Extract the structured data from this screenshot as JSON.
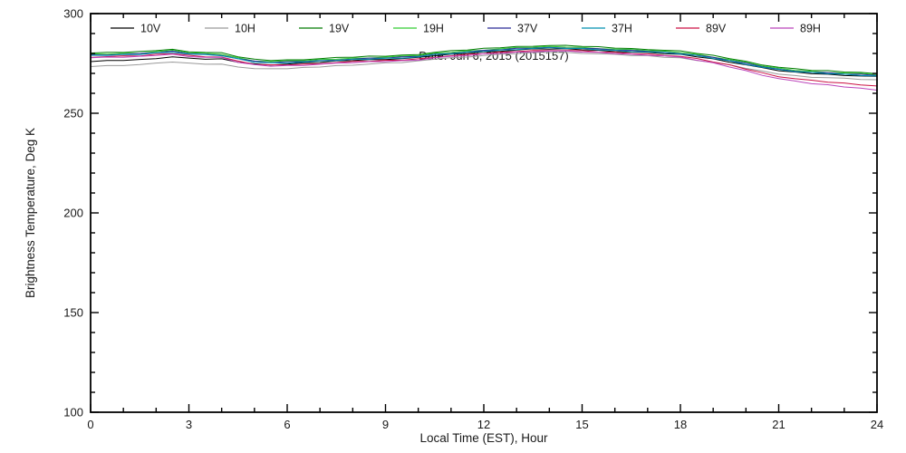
{
  "figure": {
    "background": "#ffffff",
    "frame_color": "#000000"
  },
  "chart_data": {
    "type": "line",
    "title": "",
    "xlabel": "Local Time (EST), Hour",
    "ylabel": "Brightness Temperature, Deg K",
    "annotation": "Date: Jun 6, 2015 (2015157)",
    "xlim": [
      0,
      24
    ],
    "ylim": [
      100,
      300
    ],
    "x_ticks": [
      0,
      3,
      6,
      9,
      12,
      15,
      18,
      21,
      24
    ],
    "y_ticks": [
      100,
      150,
      200,
      250,
      300
    ],
    "x_minor_step": 1,
    "y_minor_step": 10,
    "grid": false,
    "legend_position": "top-inside-horizontal",
    "x": [
      0,
      0.5,
      1,
      1.5,
      2,
      2.5,
      3,
      3.5,
      4,
      4.5,
      5,
      5.5,
      6,
      6.5,
      7,
      7.5,
      8,
      8.5,
      9,
      9.5,
      10,
      10.5,
      11,
      11.5,
      12,
      12.5,
      13,
      13.5,
      14,
      14.5,
      15,
      15.5,
      16,
      16.5,
      17,
      17.5,
      18,
      18.5,
      19,
      19.5,
      20,
      20.5,
      21,
      21.5,
      22,
      22.5,
      23,
      23.5,
      24
    ],
    "series": [
      {
        "name": "10V",
        "color": "#000000",
        "values": [
          275.9,
          276.5,
          276.5,
          277.0,
          277.4,
          278.3,
          277.7,
          277.1,
          277.3,
          275.6,
          274.8,
          274.2,
          274.7,
          275.3,
          275.5,
          276.3,
          276.4,
          276.9,
          276.9,
          277.4,
          278.1,
          278.8,
          279.7,
          280.0,
          280.8,
          281.0,
          281.7,
          282.3,
          282.2,
          282.4,
          281.8,
          281.6,
          280.9,
          280.7,
          280.6,
          279.8,
          279.6,
          278.3,
          277.3,
          275.6,
          274.3,
          272.9,
          271.3,
          270.7,
          269.8,
          269.6,
          268.9,
          268.7,
          268.5
        ]
      },
      {
        "name": "10H",
        "color": "#9a9a9a",
        "values": [
          273.4,
          273.9,
          273.9,
          274.4,
          275.2,
          275.7,
          275.2,
          274.6,
          274.7,
          273.2,
          272.4,
          272.3,
          272.3,
          273.0,
          273.2,
          273.9,
          274.1,
          274.7,
          275.3,
          275.4,
          276.3,
          277.1,
          277.9,
          278.2,
          279.0,
          279.7,
          279.9,
          280.6,
          280.5,
          280.6,
          280.0,
          279.8,
          279.6,
          278.9,
          278.9,
          278.1,
          277.8,
          276.5,
          275.5,
          274.3,
          272.5,
          271.2,
          269.6,
          268.9,
          268.0,
          267.8,
          267.6,
          266.9,
          266.8
        ]
      },
      {
        "name": "19V",
        "color": "#007a00",
        "values": [
          280.2,
          280.6,
          280.5,
          281.0,
          281.4,
          282.1,
          280.8,
          280.5,
          280.4,
          278.3,
          277.2,
          276.4,
          276.8,
          276.8,
          277.4,
          278.0,
          278.1,
          278.7,
          278.6,
          279.2,
          279.4,
          280.6,
          281.4,
          281.7,
          282.6,
          282.8,
          283.5,
          283.6,
          284.0,
          284.1,
          283.5,
          283.4,
          282.7,
          282.5,
          281.9,
          281.6,
          281.3,
          280.0,
          279.1,
          277.4,
          276.1,
          274.2,
          273.1,
          272.4,
          271.5,
          271.4,
          270.7,
          270.5,
          269.8
        ]
      },
      {
        "name": "19H",
        "color": "#33cc33",
        "values": [
          279.8,
          279.7,
          280.1,
          280.0,
          280.9,
          281.6,
          280.3,
          280.1,
          279.5,
          277.9,
          276.2,
          275.9,
          276.3,
          276.3,
          277.0,
          277.1,
          277.7,
          277.7,
          278.2,
          278.7,
          278.9,
          280.2,
          280.5,
          281.3,
          281.6,
          282.3,
          283.0,
          283.1,
          283.6,
          283.2,
          283.1,
          282.4,
          282.2,
          282.0,
          281.4,
          281.2,
          280.4,
          279.6,
          278.1,
          276.9,
          275.6,
          273.7,
          272.7,
          271.5,
          271.1,
          270.4,
          270.2,
          270.0,
          269.3
        ]
      },
      {
        "name": "37V",
        "color": "#2a2a96",
        "values": [
          279.3,
          279.2,
          279.6,
          280.0,
          280.4,
          281.2,
          279.9,
          279.6,
          279.0,
          277.4,
          276.2,
          275.4,
          275.9,
          275.9,
          276.5,
          276.6,
          277.2,
          277.7,
          277.7,
          278.3,
          278.5,
          279.7,
          280.0,
          280.8,
          281.6,
          281.8,
          282.6,
          282.7,
          283.1,
          282.7,
          282.6,
          282.4,
          281.7,
          281.6,
          281.0,
          280.7,
          279.9,
          279.1,
          278.1,
          276.4,
          275.2,
          273.3,
          272.2,
          271.0,
          270.6,
          270.4,
          269.7,
          269.6,
          268.9
        ]
      },
      {
        "name": "37H",
        "color": "#0090b0",
        "values": [
          279.1,
          279.0,
          279.5,
          279.4,
          280.3,
          280.5,
          279.7,
          279.4,
          278.8,
          277.3,
          275.6,
          275.3,
          275.2,
          275.7,
          276.3,
          276.4,
          277.1,
          277.1,
          277.6,
          277.6,
          278.3,
          279.5,
          279.8,
          280.7,
          281.0,
          281.7,
          281.9,
          282.5,
          282.9,
          282.5,
          282.5,
          281.8,
          281.6,
          280.9,
          280.8,
          280.5,
          279.7,
          279.0,
          277.5,
          276.3,
          274.5,
          273.1,
          272.0,
          270.8,
          270.5,
          269.8,
          269.6,
          268.9,
          268.7
        ]
      },
      {
        "name": "89V",
        "color": "#cc1144",
        "values": [
          278.0,
          278.4,
          278.8,
          278.7,
          279.7,
          279.9,
          279.1,
          278.3,
          278.2,
          276.2,
          274.5,
          274.3,
          274.2,
          274.7,
          274.8,
          275.4,
          276.0,
          276.0,
          276.6,
          276.6,
          277.3,
          278.0,
          278.8,
          279.6,
          279.9,
          280.7,
          280.9,
          281.5,
          281.4,
          281.5,
          281.4,
          280.7,
          280.6,
          279.9,
          279.8,
          279.0,
          278.5,
          277.5,
          275.7,
          274.3,
          272.1,
          270.3,
          268.3,
          267.3,
          266.6,
          265.6,
          265.2,
          264.2,
          263.7
        ]
      },
      {
        "name": "89H",
        "color": "#bb44bb",
        "values": [
          277.8,
          278.2,
          278.1,
          278.6,
          279.0,
          279.7,
          278.4,
          278.1,
          278.0,
          275.5,
          274.4,
          273.6,
          274.0,
          274.0,
          274.6,
          275.2,
          275.3,
          275.9,
          275.9,
          276.4,
          276.6,
          277.8,
          278.6,
          278.9,
          279.8,
          280.0,
          280.7,
          280.8,
          281.2,
          281.3,
          280.7,
          280.6,
          279.9,
          279.7,
          279.1,
          278.8,
          278.2,
          276.6,
          275.3,
          273.2,
          271.4,
          269.0,
          267.4,
          266.2,
          264.8,
          264.3,
          263.2,
          262.6,
          261.6
        ]
      }
    ]
  }
}
